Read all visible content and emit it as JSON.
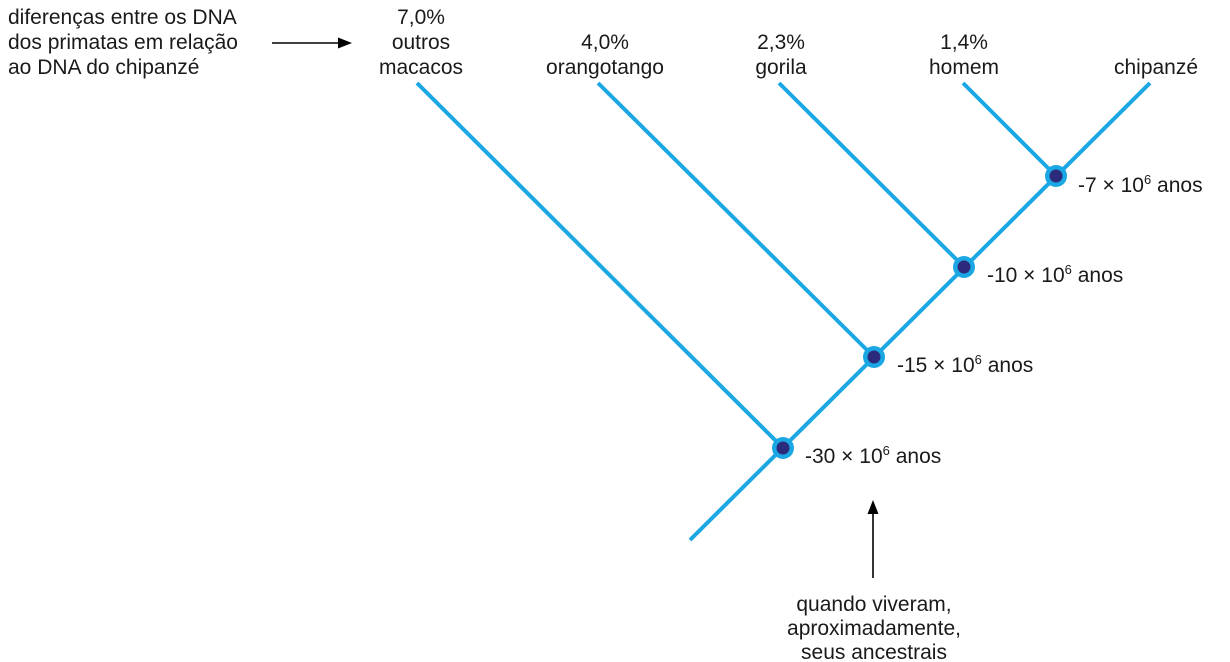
{
  "caption": {
    "lines": [
      "diferenças entre os DNA",
      "dos primatas em relação",
      "ao DNA do chipanzé"
    ]
  },
  "taxa": [
    {
      "id": "outros-macacos",
      "lines": [
        "7,0%",
        "outros",
        "macacos"
      ]
    },
    {
      "id": "orangotango",
      "lines": [
        "4,0%",
        "orangotango"
      ]
    },
    {
      "id": "gorila",
      "lines": [
        "2,3%",
        "gorila"
      ]
    },
    {
      "id": "homem",
      "lines": [
        "1,4%",
        "homem"
      ]
    },
    {
      "id": "chipanze",
      "lines": [
        "chipanzé"
      ]
    }
  ],
  "nodes": [
    {
      "id": "node-7",
      "time": {
        "prefix": "-7 × 10",
        "exp": "6",
        "suffix": " anos"
      }
    },
    {
      "id": "node-10",
      "time": {
        "prefix": "-10 × 10",
        "exp": "6",
        "suffix": " anos"
      }
    },
    {
      "id": "node-15",
      "time": {
        "prefix": "-15 × 10",
        "exp": "6",
        "suffix": " anos"
      }
    },
    {
      "id": "node-30",
      "time": {
        "prefix": "-30 × 10",
        "exp": "6",
        "suffix": " anos"
      }
    }
  ],
  "note": {
    "lines": [
      "quando viveram,",
      "aproximadamente,",
      "seus ancestrais"
    ]
  },
  "colors": {
    "branch": "#1ba7e3",
    "node_inner": "#2b2a7c",
    "text": "#1a1a1a"
  }
}
